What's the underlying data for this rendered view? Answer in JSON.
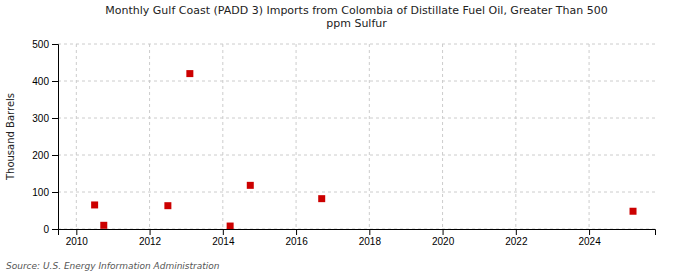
{
  "chart_data": {
    "type": "scatter",
    "title": "Monthly Gulf Coast (PADD 3) Imports from Colombia of Distillate Fuel Oil, Greater Than 500\nppm Sulfur",
    "ylabel": "Thousand Barrels",
    "source": "Source: U.S. Energy Information Administration",
    "x": [
      2010.5,
      2010.75,
      2012.5,
      2013.1,
      2014.2,
      2014.75,
      2016.7,
      2025.2
    ],
    "values": [
      65,
      10,
      63,
      420,
      8,
      118,
      82,
      48
    ],
    "color": "#cc0000",
    "marker": "square",
    "xlim": [
      2009.5,
      2025.8
    ],
    "ylim": [
      0,
      500
    ],
    "xticks": [
      2010,
      2012,
      2014,
      2016,
      2018,
      2020,
      2022,
      2024
    ],
    "yticks": [
      0,
      100,
      200,
      300,
      400,
      500
    ],
    "grid": true
  }
}
